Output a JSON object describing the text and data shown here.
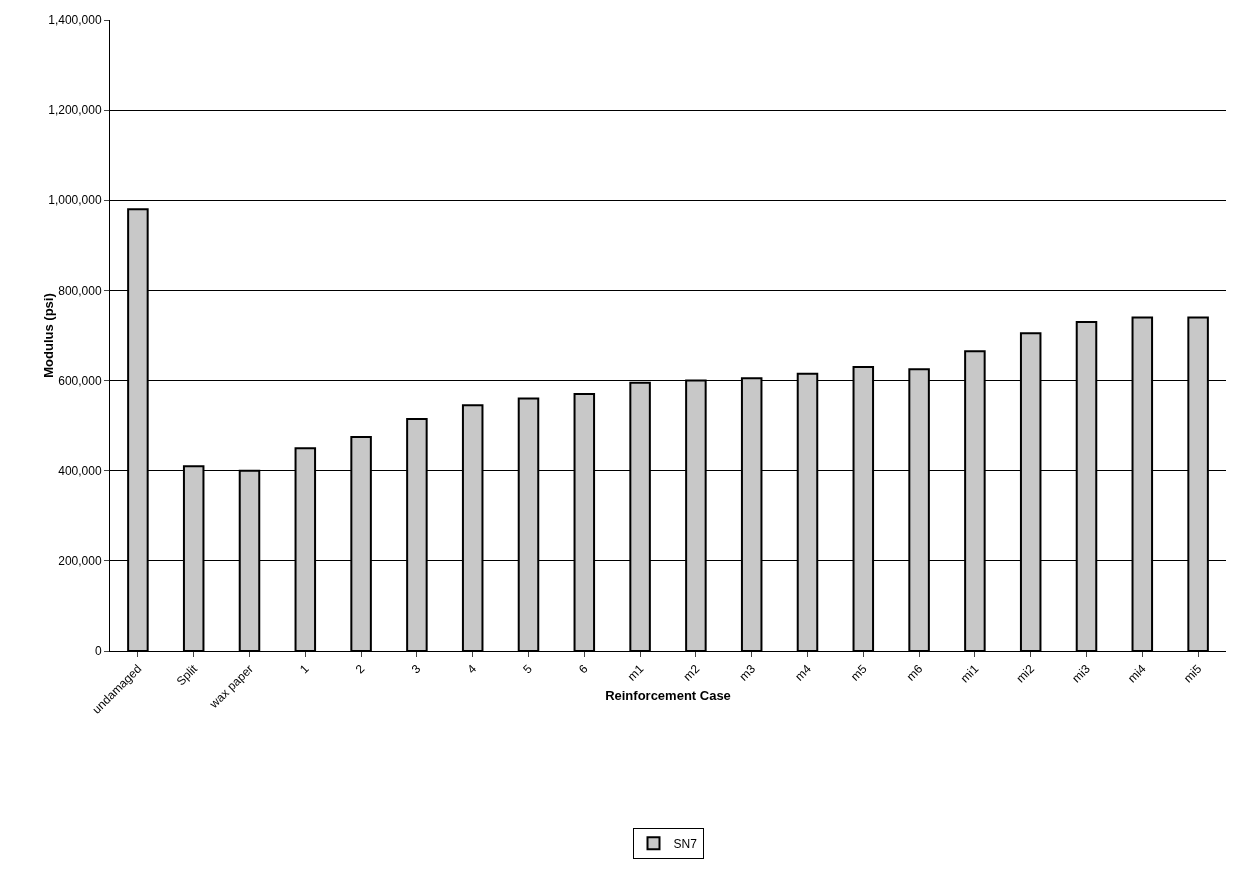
{
  "chart_data": {
    "type": "bar",
    "xlabel": "Reinforcement Case",
    "ylabel": "Modulus (psi)",
    "categories": [
      "undamaged",
      "Split",
      "wax paper",
      "1",
      "2",
      "3",
      "4",
      "5",
      "6",
      "m1",
      "m2",
      "m3",
      "m4",
      "m5",
      "m6",
      "mi1",
      "mi2",
      "mi3",
      "mi4",
      "mi5"
    ],
    "series": [
      {
        "name": "SN7",
        "color": "#c8c8c8",
        "values": [
          980000,
          410000,
          400000,
          450000,
          475000,
          515000,
          545000,
          560000,
          570000,
          595000,
          600000,
          605000,
          615000,
          630000,
          625000,
          665000,
          705000,
          730000,
          740000,
          740000
        ]
      }
    ],
    "ylim": [
      0,
      1400000
    ],
    "yticks": [
      {
        "value": 0,
        "label": "0"
      },
      {
        "value": 200000,
        "label": "200,000"
      },
      {
        "value": 400000,
        "label": "400,000"
      },
      {
        "value": 600000,
        "label": "600,000"
      },
      {
        "value": 800000,
        "label": "800,000"
      },
      {
        "value": 1000000,
        "label": "1,000,000"
      },
      {
        "value": 1200000,
        "label": "1,200,000"
      },
      {
        "value": 1400000,
        "label": "1,400,000"
      }
    ],
    "grid": "y",
    "legend": "bottom"
  }
}
